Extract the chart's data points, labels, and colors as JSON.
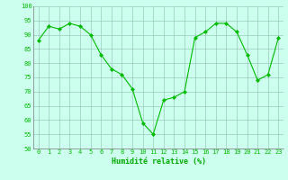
{
  "x": [
    0,
    1,
    2,
    3,
    4,
    5,
    6,
    7,
    8,
    9,
    10,
    11,
    12,
    13,
    14,
    15,
    16,
    17,
    18,
    19,
    20,
    21,
    22,
    23
  ],
  "y": [
    88,
    93,
    92,
    94,
    93,
    90,
    83,
    78,
    76,
    71,
    59,
    55,
    67,
    68,
    70,
    89,
    91,
    94,
    94,
    91,
    83,
    74,
    76,
    89
  ],
  "line_color": "#00bb00",
  "marker_color": "#00bb00",
  "bg_color": "#ccffee",
  "grid_color": "#99ccbb",
  "xlabel": "Humidité relative (%)",
  "xlabel_color": "#00aa00",
  "ylim": [
    50,
    100
  ],
  "xlim": [
    -0.5,
    23.5
  ],
  "yticks": [
    50,
    55,
    60,
    65,
    70,
    75,
    80,
    85,
    90,
    95,
    100
  ],
  "xticks": [
    0,
    1,
    2,
    3,
    4,
    5,
    6,
    7,
    8,
    9,
    10,
    11,
    12,
    13,
    14,
    15,
    16,
    17,
    18,
    19,
    20,
    21,
    22,
    23
  ],
  "tick_fontsize": 5.0,
  "xlabel_fontsize": 6.0
}
